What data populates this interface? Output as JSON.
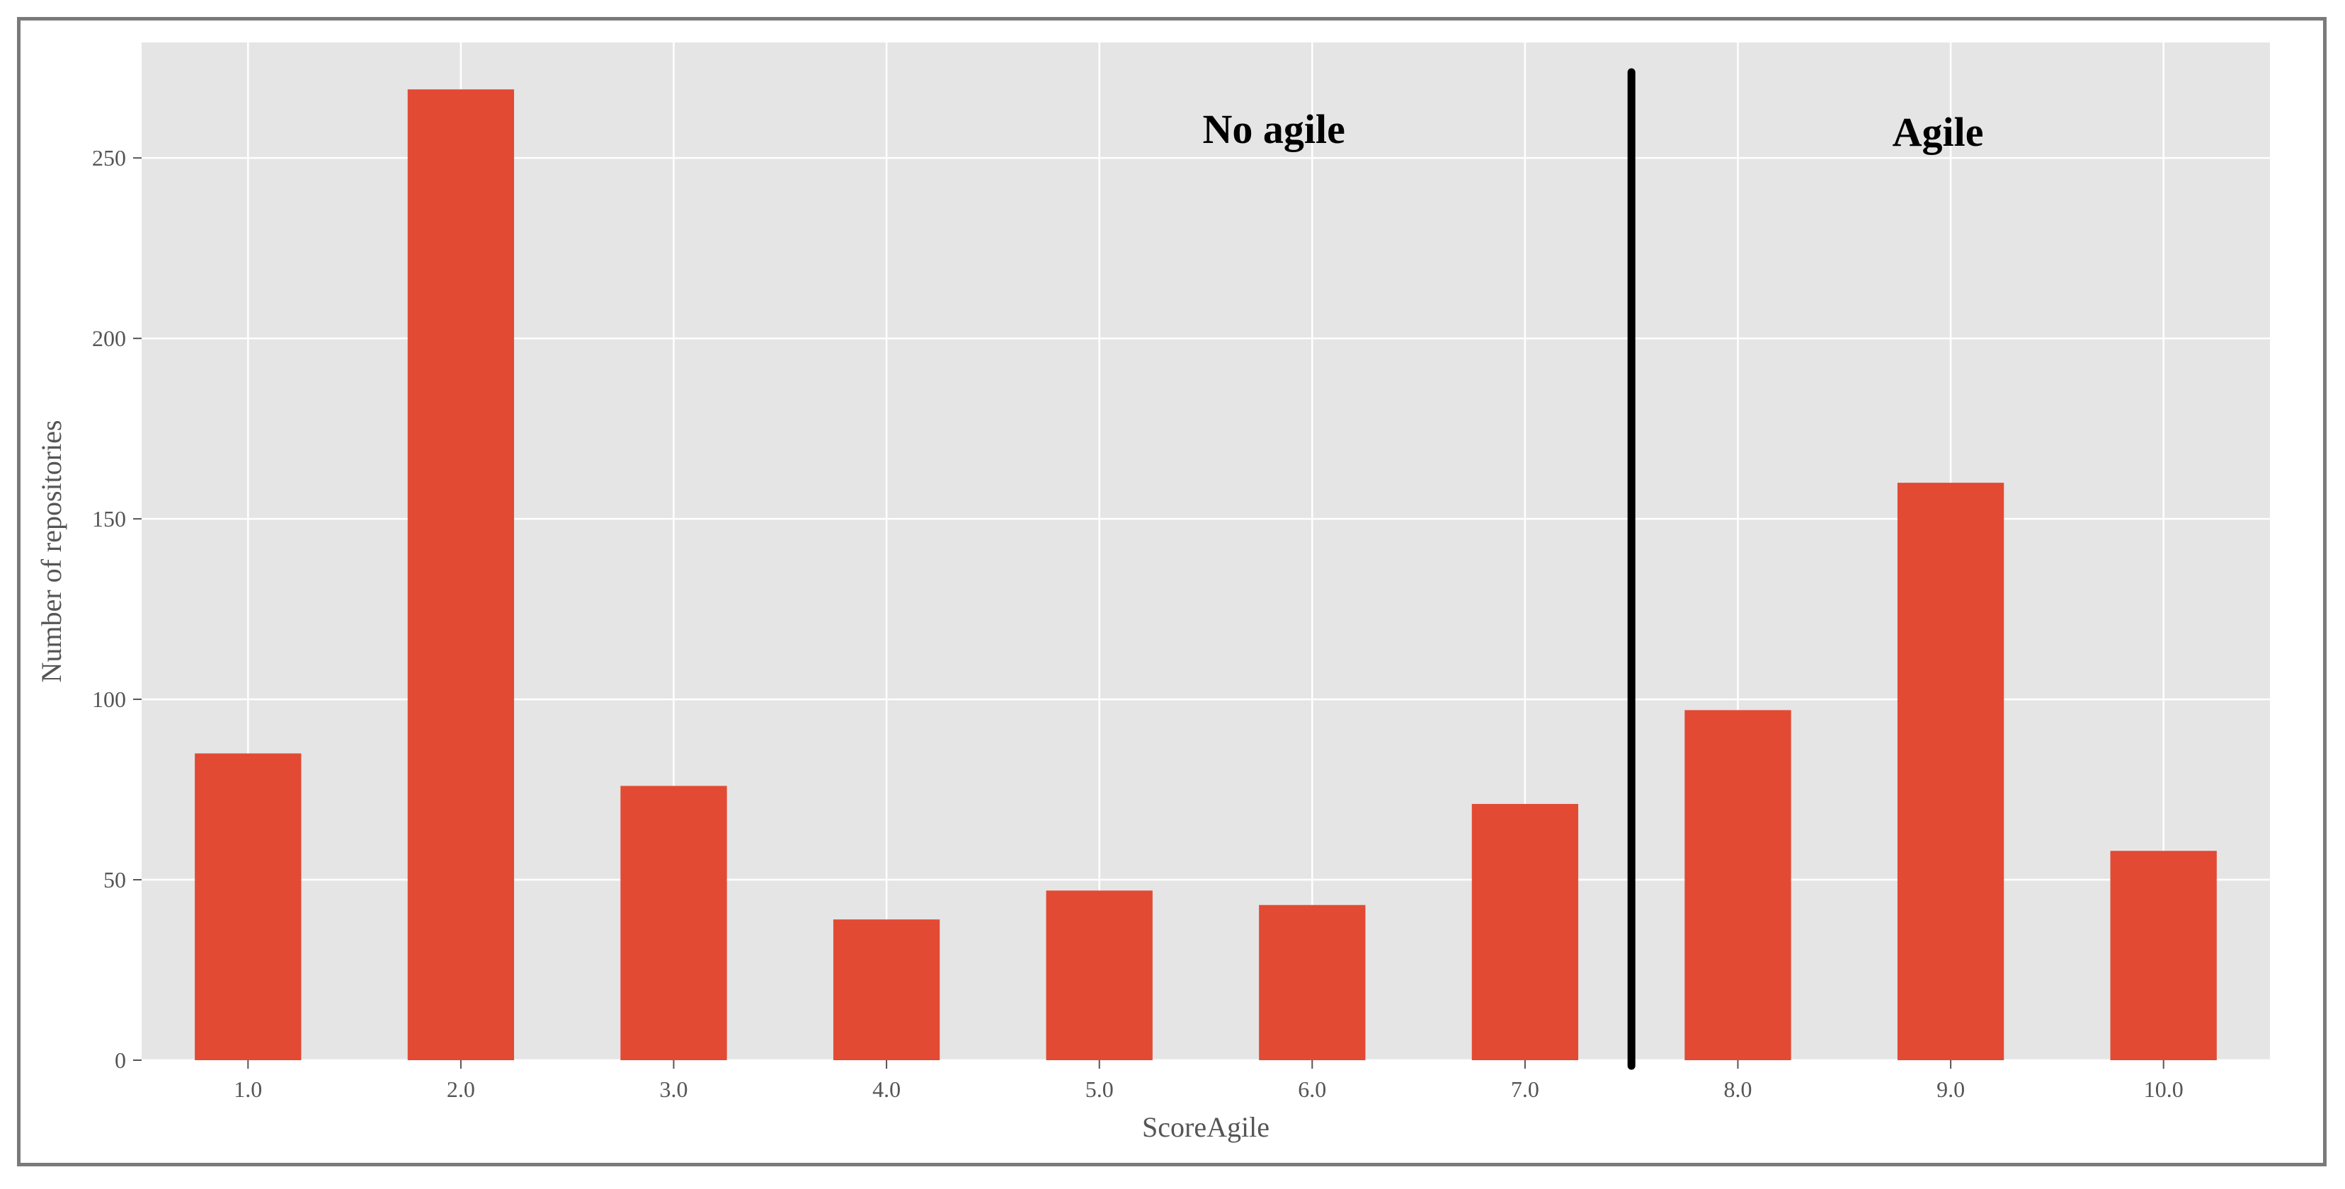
{
  "chart_data": {
    "type": "bar",
    "categories": [
      "1.0",
      "2.0",
      "3.0",
      "4.0",
      "5.0",
      "6.0",
      "7.0",
      "8.0",
      "9.0",
      "10.0"
    ],
    "values": [
      85,
      269,
      76,
      39,
      47,
      43,
      71,
      97,
      160,
      58
    ],
    "title": "",
    "xlabel": "ScoreAgile",
    "ylabel": "Number of repositories",
    "ylim": [
      0,
      282
    ],
    "yticks": [
      0,
      50,
      100,
      150,
      200,
      250
    ],
    "grid": true,
    "bar_color": "#E24A33",
    "background_color": "#E5E5E5",
    "grid_color": "#FFFFFF",
    "divider_between": [
      "7.0",
      "8.0"
    ],
    "divider_color": "#000000",
    "annotations": [
      {
        "text": "No agile",
        "side": "left-of-divider"
      },
      {
        "text": "Agile",
        "side": "right-of-divider"
      }
    ]
  }
}
